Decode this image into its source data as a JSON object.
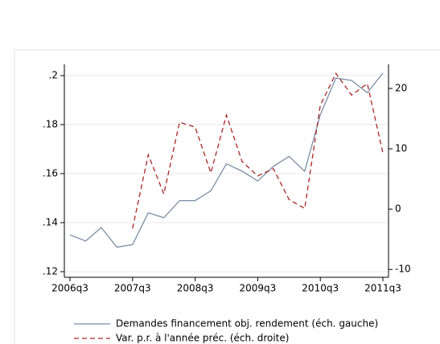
{
  "chart_data": {
    "type": "line",
    "categories": [
      "2006q3",
      null,
      null,
      null,
      "2007q3",
      null,
      null,
      null,
      "2008q3",
      null,
      null,
      null,
      "2009q3",
      null,
      null,
      null,
      "2010q3",
      null,
      null,
      null,
      "2011q3"
    ],
    "series": [
      {
        "name": "Demandes financement obj. rendement (éch. gauche)",
        "color": "#7b8ea6",
        "dash": "none",
        "axis": "y",
        "values": [
          0.135,
          0.1325,
          0.138,
          0.13,
          0.131,
          0.144,
          0.142,
          0.149,
          0.149,
          0.153,
          0.164,
          0.161,
          0.157,
          0.163,
          0.167,
          0.161,
          0.184,
          0.199,
          0.198,
          0.193,
          0.201
        ]
      },
      {
        "name": "Var. p.r. à l'année préc. (éch. droite)",
        "color": "#a82626",
        "dash": "6,4",
        "axis": "y2",
        "values": [
          null,
          null,
          null,
          null,
          -3.2,
          9,
          2.5,
          14.4,
          13.6,
          6,
          15.6,
          7.9,
          5.5,
          6.7,
          1.6,
          0.1,
          17.2,
          22.5,
          18.9,
          20.8,
          9.3
        ]
      }
    ],
    "ylim": [
      0.1177,
      0.2046
    ],
    "yticks": [
      {
        "value": 0.12,
        "label": ".12"
      },
      {
        "value": 0.14,
        "label": ".14"
      },
      {
        "value": 0.16,
        "label": ".16"
      },
      {
        "value": 0.18,
        "label": ".18"
      },
      {
        "value": 0.2,
        "label": ".2"
      }
    ],
    "y2lim": [
      -11.3,
      24
    ],
    "y2ticks": [
      -10,
      0,
      10,
      20
    ],
    "grid": true
  }
}
